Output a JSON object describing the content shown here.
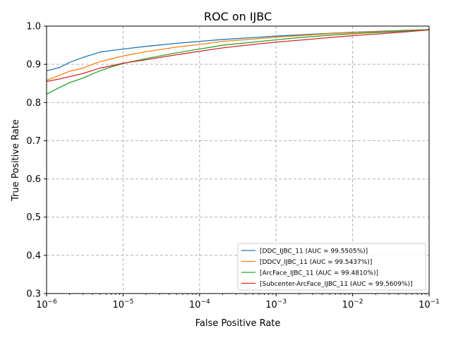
{
  "chart_data": {
    "type": "line",
    "title": "ROC on IJBC",
    "xlabel": "False Positive Rate",
    "ylabel": "True Positive Rate",
    "xscale": "log",
    "xlim": [
      1e-06,
      0.1
    ],
    "ylim": [
      0.3,
      1.0
    ],
    "grid": true,
    "grid_style": "dashed",
    "legend_position": "lower-right",
    "x_ticks": [
      {
        "value": 1e-06,
        "base": "10",
        "exp": "−6"
      },
      {
        "value": 1e-05,
        "base": "10",
        "exp": "−5"
      },
      {
        "value": 0.0001,
        "base": "10",
        "exp": "−4"
      },
      {
        "value": 0.001,
        "base": "10",
        "exp": "−3"
      },
      {
        "value": 0.01,
        "base": "10",
        "exp": "−2"
      },
      {
        "value": 0.1,
        "base": "10",
        "exp": "−1"
      }
    ],
    "y_ticks": [
      {
        "value": 0.3,
        "label": "0.3"
      },
      {
        "value": 0.4,
        "label": "0.4"
      },
      {
        "value": 0.5,
        "label": "0.5"
      },
      {
        "value": 0.6,
        "label": "0.6"
      },
      {
        "value": 0.7,
        "label": "0.7"
      },
      {
        "value": 0.8,
        "label": "0.8"
      },
      {
        "value": 0.9,
        "label": "0.9"
      },
      {
        "value": 1.0,
        "label": "1.0"
      }
    ],
    "series": [
      {
        "name": "[DDC_IJBC_11 (AUC = 99.5505%)]",
        "color": "#1f77b4",
        "x": [
          1e-06,
          1.5e-06,
          2e-06,
          3e-06,
          4e-06,
          5e-06,
          7e-06,
          1e-05,
          2e-05,
          5e-05,
          0.0001,
          0.0002,
          0.0005,
          0.001,
          0.002,
          0.005,
          0.01,
          0.02,
          0.05,
          0.1
        ],
        "y": [
          0.883,
          0.892,
          0.905,
          0.918,
          0.926,
          0.932,
          0.936,
          0.94,
          0.947,
          0.955,
          0.96,
          0.965,
          0.97,
          0.974,
          0.977,
          0.981,
          0.984,
          0.986,
          0.989,
          0.991
        ]
      },
      {
        "name": "[DDCV_IJBC_11 (AUC = 99.5437%)]",
        "color": "#ff7f0e",
        "x": [
          1e-06,
          1.5e-06,
          2e-06,
          3e-06,
          4e-06,
          5e-06,
          7e-06,
          1e-05,
          2e-05,
          5e-05,
          0.0001,
          0.0002,
          0.0005,
          0.001,
          0.002,
          0.005,
          0.01,
          0.02,
          0.05,
          0.1
        ],
        "y": [
          0.858,
          0.872,
          0.882,
          0.89,
          0.9,
          0.907,
          0.914,
          0.922,
          0.933,
          0.945,
          0.952,
          0.96,
          0.966,
          0.971,
          0.975,
          0.98,
          0.983,
          0.985,
          0.988,
          0.991
        ]
      },
      {
        "name": "[ArcFace_IJBC_11 (AUC = 99.4810%)]",
        "color": "#2ca02c",
        "x": [
          1e-06,
          1.5e-06,
          2e-06,
          3e-06,
          4e-06,
          5e-06,
          7e-06,
          1e-05,
          2e-05,
          5e-05,
          0.0001,
          0.0002,
          0.0005,
          0.001,
          0.002,
          0.005,
          0.01,
          0.02,
          0.05,
          0.1
        ],
        "y": [
          0.822,
          0.84,
          0.852,
          0.864,
          0.875,
          0.883,
          0.893,
          0.902,
          0.915,
          0.93,
          0.94,
          0.95,
          0.958,
          0.964,
          0.97,
          0.976,
          0.98,
          0.983,
          0.987,
          0.991
        ]
      },
      {
        "name": "[Subcenter-ArcFace_IJBC_11 (AUC = 99.5609%)]",
        "color": "#d62728",
        "x": [
          1e-06,
          1.5e-06,
          2e-06,
          3e-06,
          4e-06,
          5e-06,
          7e-06,
          1e-05,
          2e-05,
          5e-05,
          0.0001,
          0.0002,
          0.0005,
          0.001,
          0.002,
          0.005,
          0.01,
          0.02,
          0.05,
          0.1
        ],
        "y": [
          0.855,
          0.862,
          0.868,
          0.876,
          0.884,
          0.89,
          0.896,
          0.903,
          0.912,
          0.925,
          0.934,
          0.943,
          0.952,
          0.958,
          0.963,
          0.97,
          0.975,
          0.979,
          0.985,
          0.99
        ]
      }
    ]
  }
}
